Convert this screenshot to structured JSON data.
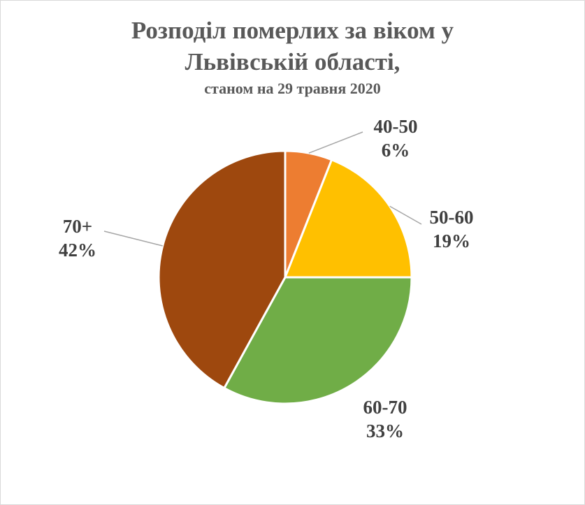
{
  "chart_data": {
    "type": "pie",
    "title": "Розподіл померлих за віком у Львівській області,",
    "subtitle": "станом на 29 травня 2020",
    "categories": [
      "40-50",
      "50-60",
      "60-70",
      "70+"
    ],
    "values": [
      6,
      19,
      33,
      42
    ],
    "value_labels": [
      "6%",
      "19%",
      "33%",
      "42%"
    ],
    "colors": [
      "#ed7d31",
      "#ffc000",
      "#70ad47",
      "#9e480e"
    ]
  }
}
